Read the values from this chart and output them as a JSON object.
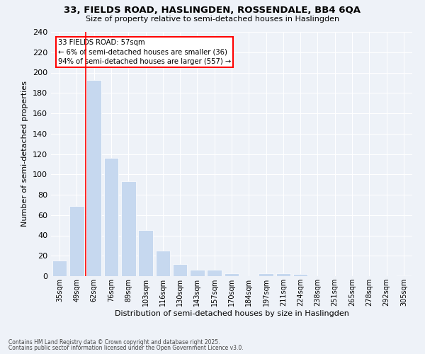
{
  "title1": "33, FIELDS ROAD, HASLINGDEN, ROSSENDALE, BB4 6QA",
  "title2": "Size of property relative to semi-detached houses in Haslingden",
  "xlabel": "Distribution of semi-detached houses by size in Haslingden",
  "ylabel": "Number of semi-detached properties",
  "categories": [
    "35sqm",
    "49sqm",
    "62sqm",
    "76sqm",
    "89sqm",
    "103sqm",
    "116sqm",
    "130sqm",
    "143sqm",
    "157sqm",
    "170sqm",
    "184sqm",
    "197sqm",
    "211sqm",
    "224sqm",
    "238sqm",
    "251sqm",
    "265sqm",
    "278sqm",
    "292sqm",
    "305sqm"
  ],
  "values": [
    15,
    69,
    193,
    116,
    93,
    45,
    25,
    12,
    6,
    6,
    3,
    0,
    3,
    3,
    2,
    0,
    0,
    0,
    0,
    0,
    1
  ],
  "bar_color": "#c6d8ef",
  "annotation_title": "33 FIELDS ROAD: 57sqm",
  "annotation_line1": "← 6% of semi-detached houses are smaller (36)",
  "annotation_line2": "94% of semi-detached houses are larger (557) →",
  "vline_x_index": 1.5,
  "footer1": "Contains HM Land Registry data © Crown copyright and database right 2025.",
  "footer2": "Contains public sector information licensed under the Open Government Licence v3.0.",
  "background_color": "#eef2f8",
  "plot_bg_color": "#eef2f8",
  "ylim": [
    0,
    240
  ],
  "yticks": [
    0,
    20,
    40,
    60,
    80,
    100,
    120,
    140,
    160,
    180,
    200,
    220,
    240
  ]
}
